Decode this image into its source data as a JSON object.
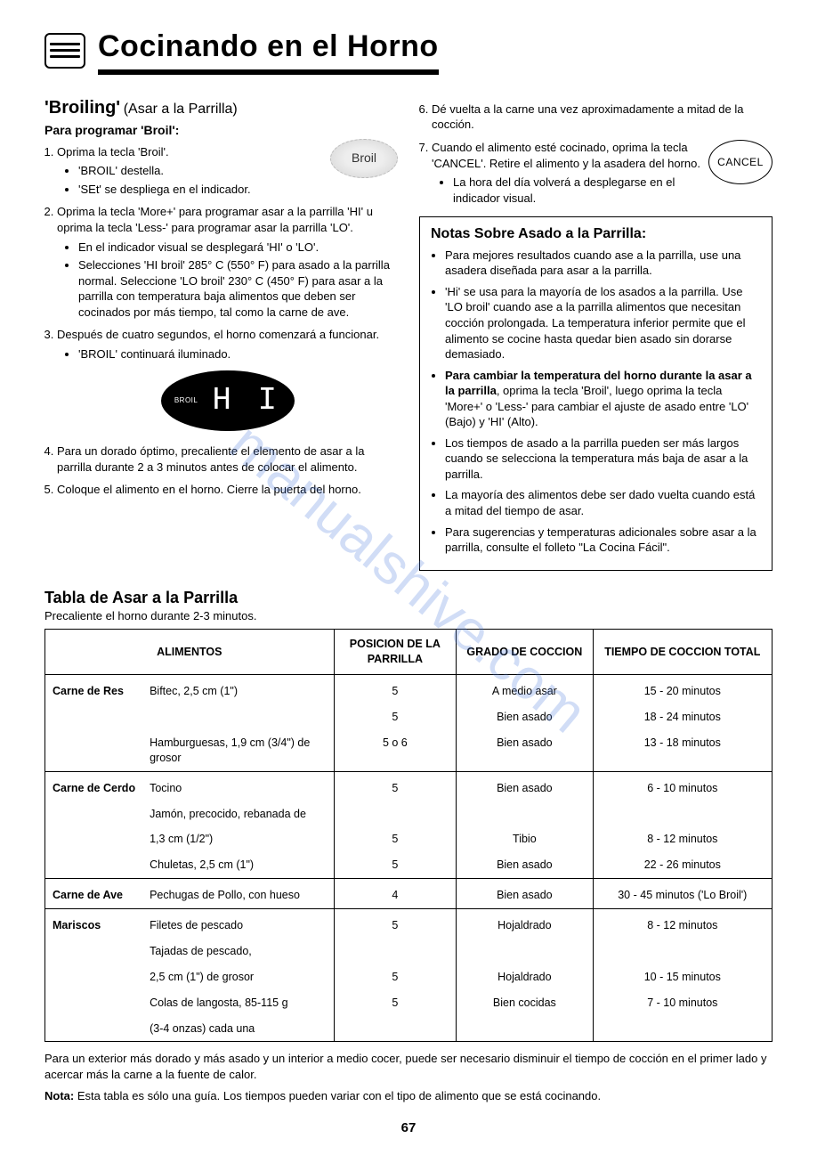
{
  "header": {
    "title": "Cocinando en el Horno"
  },
  "left": {
    "heading": "'Broiling'",
    "sub": "(Asar a la Parrilla)",
    "line": "Para programar 'Broil':",
    "broil_btn": "Broil",
    "steps": [
      "Oprima la tecla 'Broil'.",
      "Oprima la tecla 'More+' para programar asar a la parrilla 'HI' u oprima la tecla 'Less-' para programar asar la parrilla 'LO'.",
      "Después de cuatro segundos, el horno comenzará a funcionar.",
      "Para un dorado óptimo, precaliente el elemento de asar a la parrilla durante 2 a 3 minutos antes de colocar el alimento.",
      "Coloque el alimento en el horno.  Cierre la puerta del horno."
    ],
    "sub1": [
      "'BROIL' destella.",
      "'SEt' se despliega en el indicador."
    ],
    "sub2": [
      "En el indicador visual se desplegará 'HI' o 'LO'.",
      "Selecciones 'HI broil' 285° C (550° F) para asado a la parrilla normal.  Seleccione 'LO broil' 230° C (450° F) para asar a la parrilla con temperatura baja alimentos que deben ser cocinados por más tiempo, tal como la carne de ave."
    ],
    "sub3": [
      "'BROIL' continuará iluminado."
    ],
    "display_label": "BROIL",
    "display_value": "H I"
  },
  "right": {
    "steps": [
      "Dé vuelta a la carne una vez aproximadamente a mitad de la cocción.",
      "Cuando el alimento esté cocinado, oprima la tecla 'CANCEL'.  Retire el alimento y la asadera del horno."
    ],
    "cancel_btn": "CANCEL",
    "sub7": [
      "La hora del día volverá a desplegarse en el indicador visual."
    ],
    "notes_title": "Notas Sobre Asado a la Parrilla:",
    "notes": [
      "Para mejores resultados cuando ase a la parrilla, use una asadera diseñada para asar a la parrilla.",
      "'Hi' se usa para la mayoría de los asados a la parrilla.  Use 'LO broil' cuando ase a la parrilla alimentos que necesitan cocción prolongada.  La temperatura inferior permite que el alimento se cocine hasta quedar bien asado sin dorarse demasiado.",
      "",
      "Los tiempos de asado a la parrilla pueden ser más largos cuando se selecciona la temperatura más baja de asar a la parrilla.",
      "La mayoría des alimentos debe ser dado vuelta cuando está a mitad del tiempo de asar.",
      "Para sugerencias y temperaturas adicionales sobre asar a la parrilla, consulte el folleto \"La Cocina Fácil\"."
    ],
    "note3_bold": "Para cambiar la temperatura del horno durante la asar a la parrilla",
    "note3_rest": ", oprima la tecla 'Broil', luego oprima la tecla 'More+' o 'Less-' para cambiar el ajuste de asado entre 'LO' (Bajo) y 'HI' (Alto)."
  },
  "table": {
    "title": "Tabla de Asar a la Parrilla",
    "sub": "Precaliente el horno durante 2-3 minutos.",
    "headers": {
      "food": "ALIMENTOS",
      "pos": "POSICION DE LA PARRILLA",
      "done": "GRADO DE COCCION",
      "time": "TIEMPO DE COCCION TOTAL"
    },
    "groups": [
      {
        "category": "Carne de Res",
        "rows": [
          {
            "item": "Biftec, 2,5 cm (1\")",
            "pos": "5",
            "done": "A medio asar",
            "time": "15 - 20 minutos"
          },
          {
            "item": "",
            "pos": "5",
            "done": "Bien asado",
            "time": "18 - 24 minutos"
          },
          {
            "item": "Hamburguesas, 1,9 cm (3/4\") de grosor",
            "pos": "5 o 6",
            "done": "Bien asado",
            "time": "13 - 18 minutos"
          }
        ]
      },
      {
        "category": "Carne de Cerdo",
        "rows": [
          {
            "item": "Tocino",
            "pos": "5",
            "done": "Bien asado",
            "time": "6 - 10 minutos"
          },
          {
            "item": "Jamón, precocido, rebanada de",
            "pos": "",
            "done": "",
            "time": ""
          },
          {
            "item": "1,3 cm (1/2\")",
            "pos": "5",
            "done": "Tibio",
            "time": "8 - 12 minutos"
          },
          {
            "item": "Chuletas, 2,5 cm (1\")",
            "pos": "5",
            "done": "Bien asado",
            "time": "22 - 26 minutos"
          }
        ]
      },
      {
        "category": "Carne de Ave",
        "rows": [
          {
            "item": "Pechugas de Pollo, con hueso",
            "pos": "4",
            "done": "Bien asado",
            "time": "30 - 45 minutos ('Lo Broil')"
          }
        ]
      },
      {
        "category": "Mariscos",
        "rows": [
          {
            "item": "Filetes de pescado",
            "pos": "5",
            "done": "Hojaldrado",
            "time": "8 - 12 minutos"
          },
          {
            "item": "Tajadas de pescado,",
            "pos": "",
            "done": "",
            "time": ""
          },
          {
            "item": "2,5 cm (1\") de grosor",
            "pos": "5",
            "done": "Hojaldrado",
            "time": "10 - 15 minutos"
          },
          {
            "item": "Colas de langosta, 85-115 g",
            "pos": "5",
            "done": "Bien cocidas",
            "time": "7 - 10 minutos"
          },
          {
            "item": "(3-4 onzas) cada una",
            "pos": "",
            "done": "",
            "time": ""
          }
        ]
      }
    ]
  },
  "footnotes": {
    "p1": "Para un exterior más dorado y más asado y un interior a medio cocer, puede ser necesario disminuir el tiempo de cocción en el primer lado y acercar más la carne a la fuente de calor.",
    "p2_bold": "Nota:",
    "p2_rest": " Esta tabla es sólo una guía.  Los tiempos pueden variar con el tipo de alimento que se está cocinando."
  },
  "page_number": "67",
  "watermark": "manualshive.com"
}
